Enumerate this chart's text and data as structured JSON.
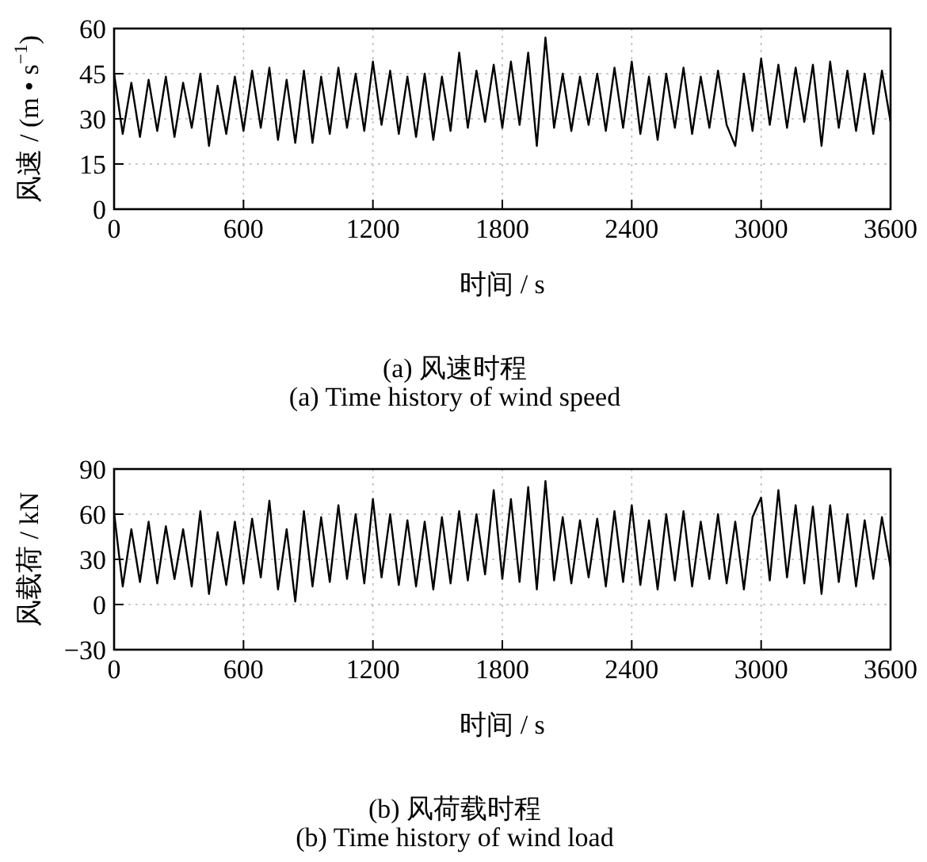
{
  "chart_data": [
    {
      "type": "line",
      "xlabel": "时间 / s",
      "ylabel": "风速 / (m • s$^{−1}$)",
      "annotations": [
        "(a) 风速时程",
        "(a) Time history of wind speed"
      ],
      "xlim": [
        0,
        3600
      ],
      "xticks": [
        0,
        600,
        1200,
        1800,
        2400,
        3000,
        3600
      ],
      "ylim": [
        0,
        60
      ],
      "yticks": [
        0,
        15,
        30,
        45,
        60
      ],
      "grid": true,
      "marker": "none",
      "line_style": "solid",
      "x": [
        0,
        40,
        80,
        120,
        160,
        200,
        240,
        280,
        320,
        360,
        400,
        440,
        480,
        520,
        560,
        600,
        640,
        680,
        720,
        760,
        800,
        840,
        880,
        920,
        960,
        1000,
        1040,
        1080,
        1120,
        1160,
        1200,
        1240,
        1280,
        1320,
        1360,
        1400,
        1440,
        1480,
        1520,
        1560,
        1600,
        1640,
        1680,
        1720,
        1760,
        1800,
        1840,
        1880,
        1920,
        1960,
        2000,
        2040,
        2080,
        2120,
        2160,
        2200,
        2240,
        2280,
        2320,
        2360,
        2400,
        2440,
        2480,
        2520,
        2560,
        2600,
        2640,
        2680,
        2720,
        2760,
        2800,
        2840,
        2880,
        2920,
        2960,
        3000,
        3040,
        3080,
        3120,
        3160,
        3200,
        3240,
        3280,
        3320,
        3360,
        3400,
        3440,
        3480,
        3520,
        3560,
        3600
      ],
      "series": [
        {
          "color": "#000000",
          "values": [
            45,
            25,
            42,
            24,
            43,
            26,
            44,
            24,
            42,
            27,
            45,
            21,
            41,
            25,
            44,
            26,
            46,
            27,
            47,
            23,
            43,
            22,
            46,
            22,
            44,
            25,
            47,
            27,
            45,
            26,
            49,
            28,
            46,
            25,
            44,
            24,
            45,
            23,
            44,
            26,
            52,
            27,
            46,
            29,
            48,
            27,
            49,
            28,
            52,
            21,
            57,
            27,
            45,
            26,
            44,
            28,
            45,
            26,
            47,
            27,
            49,
            25,
            44,
            23,
            45,
            27,
            47,
            25,
            44,
            27,
            46,
            28,
            21,
            45,
            26,
            50,
            28,
            48,
            27,
            47,
            29,
            48,
            21,
            49,
            27,
            46,
            26,
            45,
            25,
            46,
            29
          ]
        }
      ]
    },
    {
      "type": "line",
      "xlabel": "时间 / s",
      "ylabel": "风载荷 / kN",
      "annotations": [
        "(b) 风荷载时程",
        "(b) Time history of wind load"
      ],
      "xlim": [
        0,
        3600
      ],
      "xticks": [
        0,
        600,
        1200,
        1800,
        2400,
        3000,
        3600
      ],
      "ylim": [
        -30,
        90
      ],
      "yticks": [
        {
          "value": -30,
          "label": "−30"
        },
        0,
        30,
        60,
        90
      ],
      "grid": true,
      "marker": "none",
      "line_style": "solid",
      "x": [
        0,
        40,
        80,
        120,
        160,
        200,
        240,
        280,
        320,
        360,
        400,
        440,
        480,
        520,
        560,
        600,
        640,
        680,
        720,
        760,
        800,
        840,
        880,
        920,
        960,
        1000,
        1040,
        1080,
        1120,
        1160,
        1200,
        1240,
        1280,
        1320,
        1360,
        1400,
        1440,
        1480,
        1520,
        1560,
        1600,
        1640,
        1680,
        1720,
        1760,
        1800,
        1840,
        1880,
        1920,
        1960,
        2000,
        2040,
        2080,
        2120,
        2160,
        2200,
        2240,
        2280,
        2320,
        2360,
        2400,
        2440,
        2480,
        2520,
        2560,
        2600,
        2640,
        2680,
        2720,
        2760,
        2800,
        2840,
        2880,
        2920,
        2960,
        3000,
        3040,
        3080,
        3120,
        3160,
        3200,
        3240,
        3280,
        3320,
        3360,
        3400,
        3440,
        3480,
        3520,
        3560,
        3600
      ],
      "series": [
        {
          "color": "#000000",
          "values": [
            61,
            12,
            50,
            15,
            55,
            14,
            52,
            17,
            50,
            12,
            62,
            7,
            48,
            13,
            55,
            14,
            57,
            18,
            69,
            10,
            50,
            2,
            62,
            12,
            58,
            15,
            66,
            17,
            60,
            14,
            70,
            18,
            60,
            13,
            56,
            12,
            55,
            10,
            58,
            14,
            62,
            16,
            60,
            20,
            76,
            17,
            70,
            15,
            78,
            10,
            82,
            16,
            58,
            14,
            56,
            18,
            57,
            12,
            62,
            15,
            66,
            13,
            56,
            10,
            60,
            16,
            62,
            12,
            55,
            17,
            60,
            14,
            55,
            10,
            58,
            71,
            16,
            76,
            18,
            66,
            14,
            65,
            7,
            66,
            15,
            60,
            12,
            56,
            17,
            58,
            25
          ]
        }
      ]
    }
  ]
}
